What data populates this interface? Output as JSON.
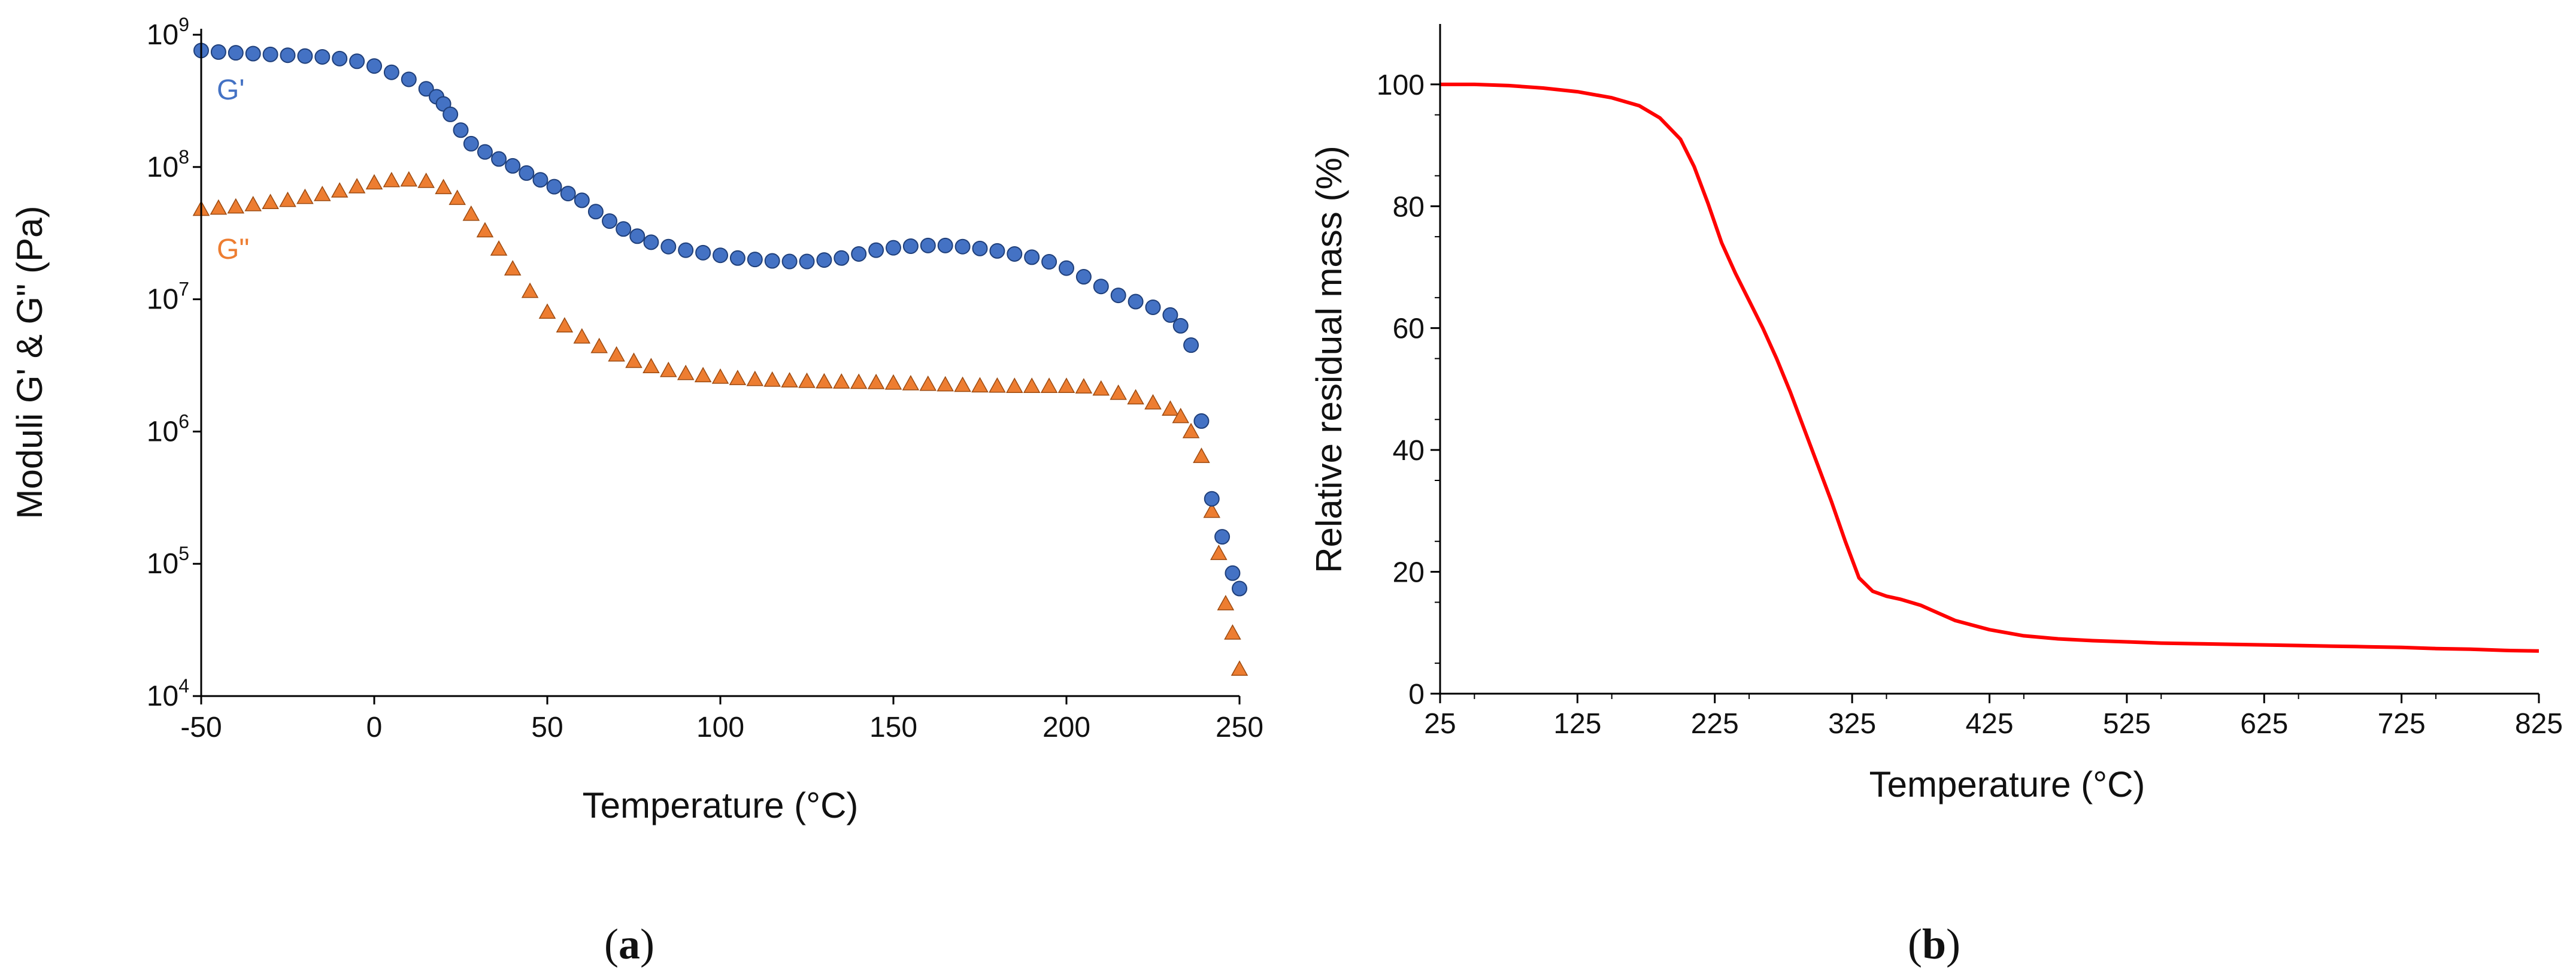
{
  "panels": {
    "a": {
      "open": "(",
      "letter": "a",
      "close": ")"
    },
    "b": {
      "open": "(",
      "letter": "b",
      "close": ")"
    }
  },
  "colors": {
    "g_prime": "#4472C4",
    "g_prime_edge": "#1F3F7A",
    "g_double_prime": "#ED7D31",
    "g_double_prime_edge": "#9C4A10",
    "tga_line": "#FF0000",
    "axis": "#000000"
  },
  "chart_data": [
    {
      "type": "scatter",
      "id": "rheology",
      "title": "",
      "xlabel": "Temperature (°C)",
      "ylabel": "Moduli G' & G\" (Pa)",
      "xlim": [
        -50,
        250
      ],
      "ylim": [
        10000,
        1000000000
      ],
      "yscale": "log",
      "x_ticks": [
        "-50",
        "0",
        "50",
        "100",
        "150",
        "200",
        "250"
      ],
      "y_ticks": [
        {
          "base": "10",
          "exp": "4"
        },
        {
          "base": "10",
          "exp": "5"
        },
        {
          "base": "10",
          "exp": "6"
        },
        {
          "base": "10",
          "exp": "7"
        },
        {
          "base": "10",
          "exp": "8"
        },
        {
          "base": "10",
          "exp": "9"
        }
      ],
      "series": [
        {
          "name": "G'",
          "marker": "circle",
          "x": [
            -50,
            -45,
            -40,
            -35,
            -30,
            -25,
            -20,
            -15,
            -10,
            -5,
            0,
            5,
            10,
            15,
            18,
            20,
            22,
            25,
            28,
            32,
            36,
            40,
            44,
            48,
            52,
            56,
            60,
            64,
            68,
            72,
            76,
            80,
            85,
            90,
            95,
            100,
            105,
            110,
            115,
            120,
            125,
            130,
            135,
            140,
            145,
            150,
            155,
            160,
            165,
            170,
            175,
            180,
            185,
            190,
            195,
            200,
            205,
            210,
            215,
            220,
            225,
            230,
            233,
            236,
            239,
            242,
            245,
            248,
            250
          ],
          "y": [
            760000000.0,
            740000000.0,
            730000000.0,
            720000000.0,
            710000000.0,
            700000000.0,
            690000000.0,
            680000000.0,
            660000000.0,
            630000000.0,
            580000000.0,
            520000000.0,
            460000000.0,
            390000000.0,
            340000000.0,
            300000000.0,
            250000000.0,
            190000000.0,
            150000000.0,
            130000000.0,
            115000000.0,
            102000000.0,
            90000000.0,
            80000000.0,
            71000000.0,
            63000000.0,
            56000000.0,
            46000000.0,
            39000000.0,
            34000000.0,
            30000000.0,
            27000000.0,
            25000000.0,
            23500000.0,
            22500000.0,
            21500000.0,
            20500000.0,
            20000000.0,
            19500000.0,
            19300000.0,
            19300000.0,
            19800000.0,
            20500000.0,
            22000000.0,
            23500000.0,
            24500000.0,
            25200000.0,
            25500000.0,
            25500000.0,
            25000000.0,
            24200000.0,
            23200000.0,
            22000000.0,
            20800000.0,
            19200000.0,
            17200000.0,
            14800000.0,
            12500000.0,
            10700000.0,
            9600000.0,
            8700000.0,
            7600000.0,
            6300000.0,
            4500000.0,
            1200000.0,
            310000.0,
            160000.0,
            85000.0,
            65000.0
          ]
        },
        {
          "name": "G\"",
          "marker": "triangle",
          "x": [
            -50,
            -45,
            -40,
            -35,
            -30,
            -25,
            -20,
            -15,
            -10,
            -5,
            0,
            5,
            10,
            15,
            20,
            24,
            28,
            32,
            36,
            40,
            45,
            50,
            55,
            60,
            65,
            70,
            75,
            80,
            85,
            90,
            95,
            100,
            105,
            110,
            115,
            120,
            125,
            130,
            135,
            140,
            145,
            150,
            155,
            160,
            165,
            170,
            175,
            180,
            185,
            190,
            195,
            200,
            205,
            210,
            215,
            220,
            225,
            230,
            233,
            236,
            239,
            242,
            244,
            246,
            248,
            250
          ],
          "y": [
            48000000.0,
            49000000.0,
            50000000.0,
            52000000.0,
            54000000.0,
            56000000.0,
            59000000.0,
            62000000.0,
            66000000.0,
            71000000.0,
            76000000.0,
            79000000.0,
            80000000.0,
            78000000.0,
            70000000.0,
            58000000.0,
            44000000.0,
            33000000.0,
            24000000.0,
            17000000.0,
            11500000.0,
            8000000.0,
            6300000.0,
            5200000.0,
            4400000.0,
            3800000.0,
            3400000.0,
            3100000.0,
            2900000.0,
            2750000.0,
            2650000.0,
            2580000.0,
            2520000.0,
            2480000.0,
            2450000.0,
            2420000.0,
            2400000.0,
            2380000.0,
            2370000.0,
            2360000.0,
            2350000.0,
            2330000.0,
            2300000.0,
            2280000.0,
            2260000.0,
            2240000.0,
            2220000.0,
            2210000.0,
            2200000.0,
            2200000.0,
            2200000.0,
            2200000.0,
            2180000.0,
            2100000.0,
            1950000.0,
            1800000.0,
            1650000.0,
            1480000.0,
            1300000.0,
            1000000.0,
            650000.0,
            250000.0,
            120000.0,
            50000.0,
            30000.0,
            16000.0
          ]
        }
      ],
      "annotations": {
        "g_prime": "G'",
        "g_double_prime": "G\""
      }
    },
    {
      "type": "line",
      "id": "tga",
      "title": "",
      "xlabel": "Temperature (°C)",
      "ylabel": "Relative residual mass (%)",
      "xlim": [
        25,
        825
      ],
      "ylim": [
        0,
        105
      ],
      "x_ticks": [
        "25",
        "125",
        "225",
        "325",
        "425",
        "525",
        "625",
        "725",
        "825"
      ],
      "y_ticks": [
        "0",
        "20",
        "40",
        "60",
        "80",
        "100"
      ],
      "series": [
        {
          "name": "Relative residual mass",
          "x": [
            25,
            50,
            75,
            100,
            125,
            150,
            170,
            185,
            200,
            210,
            220,
            230,
            240,
            250,
            260,
            270,
            280,
            290,
            300,
            310,
            320,
            330,
            340,
            350,
            360,
            375,
            390,
            400,
            425,
            450,
            475,
            500,
            525,
            550,
            575,
            600,
            625,
            650,
            675,
            700,
            725,
            750,
            775,
            800,
            825
          ],
          "y": [
            100,
            100,
            99.8,
            99.4,
            98.8,
            97.8,
            96.5,
            94.5,
            91,
            86.5,
            80.5,
            74,
            69,
            64.5,
            60,
            55,
            49.5,
            43.5,
            37.5,
            31.5,
            25,
            19,
            16.8,
            16,
            15.5,
            14.5,
            13,
            12,
            10.5,
            9.5,
            9,
            8.7,
            8.5,
            8.3,
            8.2,
            8.1,
            8,
            7.9,
            7.8,
            7.7,
            7.6,
            7.4,
            7.3,
            7.1,
            7.0
          ]
        }
      ]
    }
  ]
}
